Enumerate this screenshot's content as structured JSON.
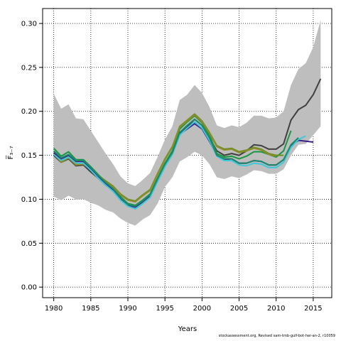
{
  "chart_data": {
    "type": "line",
    "xlabel": "Years",
    "ylabel": "F̅₃₋₇",
    "xlim": [
      1978.5,
      2017.5
    ],
    "ylim": [
      -0.012,
      0.317
    ],
    "x_ticks": [
      1980,
      1985,
      1990,
      1995,
      2000,
      2005,
      2010,
      2015
    ],
    "x_tick_labels": [
      "1980",
      "1985",
      "1990",
      "1995",
      "2000",
      "2005",
      "2010",
      "2015"
    ],
    "y_ticks": [
      0.0,
      0.05,
      0.1,
      0.15,
      0.2,
      0.25,
      0.3
    ],
    "y_tick_labels": [
      "0.00",
      "0.05",
      "0.10",
      "0.15",
      "0.20",
      "0.25",
      "0.30"
    ],
    "grid": true,
    "band": {
      "color": "#bebebe",
      "years": [
        1980,
        1981,
        1982,
        1983,
        1984,
        1985,
        1986,
        1987,
        1988,
        1989,
        1990,
        1991,
        1992,
        1993,
        1994,
        1995,
        1996,
        1997,
        1998,
        1999,
        2000,
        2001,
        2002,
        2003,
        2004,
        2005,
        2006,
        2007,
        2008,
        2009,
        2010,
        2011,
        2012,
        2013,
        2014,
        2015,
        2016
      ],
      "upper": [
        0.22,
        0.203,
        0.208,
        0.192,
        0.191,
        0.178,
        0.165,
        0.152,
        0.14,
        0.126,
        0.118,
        0.115,
        0.122,
        0.13,
        0.148,
        0.168,
        0.183,
        0.213,
        0.219,
        0.23,
        0.221,
        0.205,
        0.184,
        0.181,
        0.184,
        0.182,
        0.187,
        0.195,
        0.195,
        0.192,
        0.193,
        0.2,
        0.23,
        0.248,
        0.255,
        0.273,
        0.304
      ],
      "lower": [
        0.103,
        0.099,
        0.104,
        0.1,
        0.1,
        0.096,
        0.093,
        0.088,
        0.085,
        0.078,
        0.073,
        0.07,
        0.077,
        0.082,
        0.095,
        0.114,
        0.125,
        0.143,
        0.148,
        0.154,
        0.15,
        0.14,
        0.125,
        0.123,
        0.126,
        0.124,
        0.128,
        0.133,
        0.132,
        0.129,
        0.129,
        0.134,
        0.15,
        0.162,
        0.163,
        0.173,
        0.183
      ]
    },
    "series": [
      {
        "color": "#404040",
        "x": [
          1980,
          1981,
          1982,
          1983,
          1984,
          1985,
          1986,
          1987,
          1988,
          1989,
          1990,
          1991,
          1992,
          1993,
          1994,
          1995,
          1996,
          1997,
          1998,
          1999,
          2000,
          2001,
          2002,
          2003,
          2004,
          2005,
          2006,
          2007,
          2008,
          2009,
          2010,
          2011,
          2012,
          2013,
          2014,
          2015,
          2016
        ],
        "y": [
          0.15,
          0.142,
          0.146,
          0.138,
          0.139,
          0.131,
          0.124,
          0.116,
          0.11,
          0.101,
          0.095,
          0.093,
          0.098,
          0.104,
          0.122,
          0.14,
          0.153,
          0.176,
          0.182,
          0.191,
          0.184,
          0.17,
          0.155,
          0.15,
          0.152,
          0.15,
          0.155,
          0.162,
          0.161,
          0.157,
          0.157,
          0.163,
          0.19,
          0.202,
          0.207,
          0.219,
          0.237
        ]
      },
      {
        "color": "#1a9641",
        "x": [
          1980,
          1981,
          1982,
          1983,
          1984,
          1985,
          1986,
          1987,
          1988,
          1989,
          1990,
          1991,
          1992,
          1993,
          1994,
          1995,
          1996,
          1997,
          1998,
          1999,
          2000,
          2001,
          2002,
          2003,
          2004,
          2005,
          2006,
          2007,
          2008,
          2009,
          2010,
          2011,
          2012
        ],
        "y": [
          0.158,
          0.149,
          0.154,
          0.145,
          0.145,
          0.137,
          0.128,
          0.12,
          0.113,
          0.103,
          0.095,
          0.093,
          0.099,
          0.106,
          0.124,
          0.141,
          0.155,
          0.18,
          0.188,
          0.195,
          0.187,
          0.173,
          0.152,
          0.148,
          0.149,
          0.146,
          0.149,
          0.154,
          0.154,
          0.151,
          0.148,
          0.155,
          0.178
        ]
      },
      {
        "color": "#6b8e23",
        "x": [
          1980,
          1981,
          1982,
          1983,
          1984,
          1985,
          1986,
          1987,
          1988,
          1989,
          1990,
          1991,
          1992,
          1993,
          1994,
          1995,
          1996,
          1997,
          1998,
          1999,
          2000,
          2001,
          2002,
          2003,
          2004,
          2005,
          2006,
          2007,
          2008,
          2009,
          2010,
          2011
        ],
        "y": [
          0.153,
          0.143,
          0.148,
          0.14,
          0.141,
          0.135,
          0.127,
          0.121,
          0.115,
          0.106,
          0.1,
          0.098,
          0.105,
          0.111,
          0.129,
          0.146,
          0.16,
          0.183,
          0.19,
          0.197,
          0.189,
          0.176,
          0.161,
          0.157,
          0.158,
          0.154,
          0.156,
          0.159,
          0.157,
          0.152,
          0.15,
          0.15
        ]
      },
      {
        "color": "#8c8c2a",
        "x": [
          1980,
          1981,
          1982,
          1983,
          1984,
          1985,
          1986,
          1987,
          1988,
          1989,
          1990,
          1991,
          1992,
          1993,
          1994,
          1995,
          1996,
          1997,
          1998,
          1999,
          2000,
          2001,
          2002,
          2003,
          2004,
          2005,
          2006,
          2007,
          2008,
          2009,
          2010
        ],
        "y": [
          0.152,
          0.142,
          0.147,
          0.139,
          0.14,
          0.134,
          0.126,
          0.12,
          0.114,
          0.105,
          0.099,
          0.097,
          0.104,
          0.11,
          0.128,
          0.145,
          0.159,
          0.182,
          0.189,
          0.196,
          0.188,
          0.175,
          0.16,
          0.156,
          0.157,
          0.153,
          0.155,
          0.158,
          0.156,
          0.151,
          0.149
        ]
      },
      {
        "color": "#3a1f8c",
        "x": [
          1980,
          1981,
          1982,
          1983,
          1984,
          1985,
          1986,
          1987,
          1988,
          1989,
          1990,
          1991,
          1992,
          1993,
          1994,
          1995,
          1996,
          1997,
          1998,
          1999,
          2000,
          2001,
          2002,
          2003,
          2004,
          2005,
          2006,
          2007,
          2008,
          2009,
          2010,
          2011,
          2012,
          2013,
          2014,
          2015
        ],
        "y": [
          0.153,
          0.146,
          0.15,
          0.143,
          0.143,
          0.135,
          0.126,
          0.117,
          0.111,
          0.101,
          0.093,
          0.091,
          0.097,
          0.104,
          0.122,
          0.139,
          0.152,
          0.174,
          0.18,
          0.186,
          0.18,
          0.166,
          0.15,
          0.145,
          0.146,
          0.141,
          0.141,
          0.144,
          0.143,
          0.139,
          0.139,
          0.145,
          0.161,
          0.167,
          0.166,
          0.165
        ]
      },
      {
        "color": "#40c8d8",
        "x": [
          1980,
          1981,
          1982,
          1983,
          1984,
          1985,
          1986,
          1987,
          1988,
          1989,
          1990,
          1991,
          1992,
          1993,
          1994,
          1995,
          1996,
          1997,
          1998,
          1999,
          2000,
          2001,
          2002,
          2003,
          2004,
          2005,
          2006,
          2007,
          2008,
          2009,
          2010,
          2011,
          2012,
          2013,
          2014
        ],
        "y": [
          0.151,
          0.144,
          0.148,
          0.141,
          0.141,
          0.133,
          0.124,
          0.116,
          0.109,
          0.099,
          0.092,
          0.089,
          0.095,
          0.102,
          0.12,
          0.137,
          0.151,
          0.173,
          0.181,
          0.188,
          0.181,
          0.167,
          0.149,
          0.144,
          0.144,
          0.139,
          0.138,
          0.141,
          0.14,
          0.136,
          0.136,
          0.142,
          0.159,
          0.168,
          0.172
        ]
      },
      {
        "color": "#1b8a6b",
        "x": [
          1980,
          1981,
          1982,
          1983,
          1984,
          1985,
          1986,
          1987,
          1988,
          1989,
          1990,
          1991,
          1992,
          1993,
          1994,
          1995,
          1996,
          1997,
          1998,
          1999,
          2000,
          2001,
          2002,
          2003,
          2004,
          2005,
          2006,
          2007,
          2008,
          2009,
          2010,
          2011,
          2012,
          2013
        ],
        "y": [
          0.155,
          0.147,
          0.151,
          0.144,
          0.144,
          0.136,
          0.127,
          0.119,
          0.112,
          0.102,
          0.094,
          0.092,
          0.098,
          0.105,
          0.123,
          0.14,
          0.153,
          0.176,
          0.184,
          0.191,
          0.184,
          0.17,
          0.15,
          0.146,
          0.146,
          0.141,
          0.141,
          0.144,
          0.143,
          0.139,
          0.139,
          0.145,
          0.162,
          0.17
        ]
      }
    ]
  },
  "footer_text": "stockassessment.org, Revised  sam-tmb-gulf-bot-her-an-2, r10059"
}
